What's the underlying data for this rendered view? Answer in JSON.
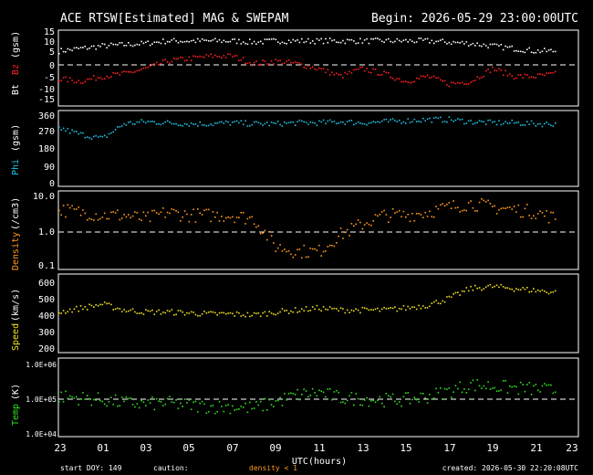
{
  "header": {
    "title": "ACE RTSW[Estimated] MAG & SWEPAM",
    "begin": "Begin: 2026-05-29 23:00:00UTC"
  },
  "footer": {
    "start_doy": "start DOY: 149",
    "caution": "caution:",
    "caution_note": "density < 1",
    "created": "created: 2026-05-30 22:20:08UTC"
  },
  "x_axis": {
    "label": "UTC(hours)",
    "ticks": [
      "23",
      "01",
      "03",
      "05",
      "07",
      "09",
      "11",
      "13",
      "15",
      "17",
      "19",
      "21",
      "23"
    ]
  },
  "colors": {
    "bt": "#ffffff",
    "bz": "#ff2020",
    "phi": "#20c0e0",
    "density": "#ff9a20",
    "speed": "#f0e020",
    "temp": "#30e020",
    "axis": "#ffffff"
  },
  "panels": {
    "mag": {
      "y_label_bt": "Bt",
      "y_label_bz": "Bz",
      "y_label_unit": "(gsm)",
      "ticks": [
        "15",
        "10",
        "5",
        "0",
        "-5",
        "-10",
        "-15"
      ]
    },
    "phi": {
      "y_label": "Phi",
      "y_label_unit": "(gsm)",
      "ticks": [
        "360",
        "270",
        "180",
        "90",
        "0"
      ]
    },
    "density": {
      "y_label": "Density",
      "y_label_unit": "(/cm3)",
      "ticks": [
        "10.0",
        "1.0",
        "0.1"
      ]
    },
    "speed": {
      "y_label": "Speed",
      "y_label_unit": "(km/s)",
      "ticks": [
        "600",
        "500",
        "400",
        "300",
        "200"
      ]
    },
    "temp": {
      "y_label": "Temp",
      "y_label_unit": "(K)",
      "ticks": [
        "1.0E+06",
        "1.0E+05",
        "1.0E+04"
      ]
    }
  },
  "chart_data": [
    {
      "type": "scatter",
      "panel": "mag",
      "xlabel": "UTC(hours)",
      "x_unit": "hours since 2026-05-29 23:00 UTC",
      "ylim": [
        -15,
        15
      ],
      "reference_line": 0,
      "series": [
        {
          "name": "Bt",
          "color": "#ffffff",
          "x": [
            0,
            1,
            2,
            3,
            4,
            5,
            6,
            7,
            8,
            9,
            10,
            11,
            12,
            13,
            14,
            15,
            16,
            17,
            18,
            19,
            20,
            21,
            22,
            23
          ],
          "y": [
            7,
            8,
            9,
            9.5,
            10,
            11,
            11,
            11,
            11,
            10.5,
            11,
            11,
            11,
            11,
            11,
            11,
            11,
            11,
            10.5,
            10,
            9,
            8,
            7,
            7
          ]
        },
        {
          "name": "Bz",
          "color": "#ff2020",
          "x": [
            0,
            1,
            2,
            3,
            4,
            5,
            6,
            7,
            8,
            9,
            10,
            11,
            12,
            13,
            14,
            15,
            16,
            17,
            18,
            19,
            20,
            21,
            22,
            23
          ],
          "y": [
            -4,
            -5,
            -3,
            -2,
            0,
            3,
            4,
            5,
            5,
            2,
            3,
            2,
            0,
            -3,
            0,
            -2,
            -5,
            -3,
            -6,
            -5,
            0,
            -3,
            -3,
            -2
          ]
        }
      ]
    },
    {
      "type": "scatter",
      "panel": "phi",
      "ylim": [
        0,
        360
      ],
      "series": [
        {
          "name": "Phi",
          "color": "#20c0e0",
          "x": [
            0,
            1,
            2,
            3,
            4,
            5,
            6,
            7,
            8,
            9,
            10,
            11,
            12,
            13,
            14,
            15,
            16,
            17,
            18,
            19,
            20,
            21,
            22,
            23
          ],
          "y": [
            280,
            250,
            230,
            300,
            310,
            305,
            300,
            300,
            305,
            300,
            300,
            305,
            305,
            310,
            305,
            310,
            315,
            320,
            320,
            310,
            305,
            305,
            300,
            300
          ]
        }
      ]
    },
    {
      "type": "scatter",
      "panel": "density",
      "yscale": "log",
      "ylim": [
        0.1,
        10
      ],
      "reference_line": 1,
      "series": [
        {
          "name": "Density",
          "color": "#ff9a20",
          "x": [
            0,
            1,
            2,
            3,
            4,
            5,
            6,
            7,
            8,
            9,
            10,
            11,
            12,
            13,
            14,
            15,
            16,
            17,
            18,
            19,
            20,
            21,
            22,
            23
          ],
          "y": [
            3.5,
            3,
            2.5,
            2.5,
            2,
            3,
            2.5,
            2.5,
            2.5,
            2,
            0.4,
            0.3,
            0.3,
            0.8,
            1.5,
            2.5,
            2.5,
            3,
            4,
            5,
            4,
            3.5,
            3,
            2
          ]
        }
      ]
    },
    {
      "type": "scatter",
      "panel": "speed",
      "ylim": [
        200,
        600
      ],
      "series": [
        {
          "name": "Speed",
          "color": "#f0e020",
          "x": [
            0,
            1,
            2,
            3,
            4,
            5,
            6,
            7,
            8,
            9,
            10,
            11,
            12,
            13,
            14,
            15,
            16,
            17,
            18,
            19,
            20,
            21,
            22,
            23
          ],
          "y": [
            410,
            430,
            450,
            420,
            410,
            410,
            405,
            400,
            400,
            395,
            410,
            420,
            430,
            420,
            420,
            420,
            430,
            445,
            480,
            530,
            540,
            530,
            520,
            510
          ]
        }
      ]
    },
    {
      "type": "scatter",
      "panel": "temp",
      "yscale": "log",
      "ylim": [
        10000,
        1000000
      ],
      "reference_line": 100000,
      "series": [
        {
          "name": "Temp",
          "color": "#30e020",
          "x": [
            0,
            1,
            2,
            3,
            4,
            5,
            6,
            7,
            8,
            9,
            10,
            11,
            12,
            13,
            14,
            15,
            16,
            17,
            18,
            19,
            20,
            21,
            22,
            23
          ],
          "y": [
            110000,
            100000,
            90000,
            75000,
            70000,
            75000,
            65000,
            60000,
            60000,
            55000,
            80000,
            120000,
            140000,
            100000,
            95000,
            90000,
            90000,
            110000,
            150000,
            220000,
            200000,
            180000,
            170000,
            150000
          ]
        }
      ]
    }
  ]
}
